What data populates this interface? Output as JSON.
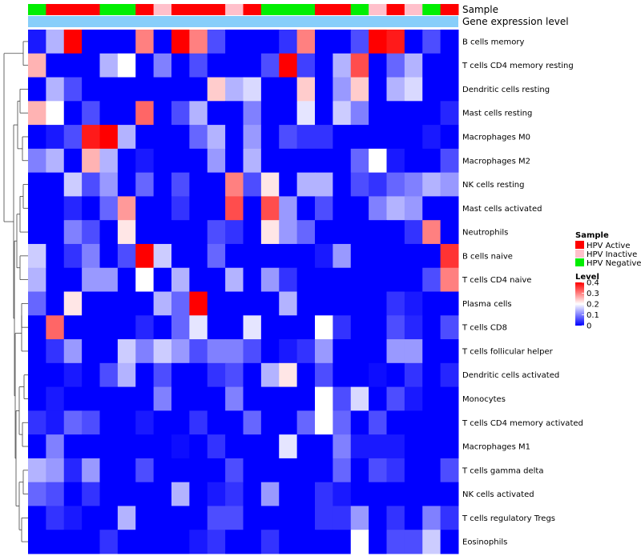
{
  "chart_data": {
    "type": "heatmap",
    "title": "",
    "annotation_tracks": [
      {
        "label": "Sample",
        "key": "sample"
      },
      {
        "label": "Gene expression level",
        "key": "gene_level"
      }
    ],
    "column_groups": [
      "HPV Negative",
      "HPV Active",
      "HPV Active",
      "HPV Active",
      "HPV Negative",
      "HPV Negative",
      "HPV Active",
      "HPV Inactive",
      "HPV Active",
      "HPV Active",
      "HPV Active",
      "HPV Inactive",
      "HPV Active",
      "HPV Negative",
      "HPV Negative",
      "HPV Negative",
      "HPV Active",
      "HPV Active",
      "HPV Negative",
      "HPV Inactive",
      "HPV Active",
      "HPV Inactive",
      "HPV Negative",
      "HPV Active"
    ],
    "rows": [
      {
        "label": "B cells memory",
        "values": [
          0.02,
          0.14,
          0.4,
          0.0,
          0.0,
          0.0,
          0.3,
          0.0,
          0.4,
          0.3,
          0.06,
          0.0,
          0.0,
          0.0,
          0.04,
          0.3,
          0.0,
          0.0,
          0.06,
          0.4,
          0.38,
          0.0,
          0.06,
          0.0
        ]
      },
      {
        "label": "T cells CD4 memory resting",
        "values": [
          0.26,
          0.0,
          0.0,
          0.0,
          0.14,
          0.2,
          0.0,
          0.1,
          0.0,
          0.06,
          0.0,
          0.0,
          0.0,
          0.06,
          0.4,
          0.05,
          0.0,
          0.14,
          0.34,
          0.0,
          0.08,
          0.14,
          0.0,
          0.0
        ]
      },
      {
        "label": "Dendritic cells resting",
        "values": [
          0.0,
          0.14,
          0.06,
          0.0,
          0.0,
          0.0,
          0.0,
          0.0,
          0.0,
          0.0,
          0.24,
          0.14,
          0.17,
          0.0,
          0.0,
          0.24,
          0.0,
          0.12,
          0.24,
          0.0,
          0.14,
          0.17,
          0.0,
          0.0
        ]
      },
      {
        "label": "Mast cells resting",
        "values": [
          0.26,
          0.2,
          0.0,
          0.06,
          0.0,
          0.0,
          0.32,
          0.0,
          0.06,
          0.14,
          0.0,
          0.0,
          0.1,
          0.0,
          0.0,
          0.18,
          0.0,
          0.16,
          0.1,
          0.0,
          0.0,
          0.0,
          0.0,
          0.03
        ]
      },
      {
        "label": "Macrophages M0",
        "values": [
          0.0,
          0.02,
          0.06,
          0.38,
          0.4,
          0.14,
          0.0,
          0.0,
          0.0,
          0.08,
          0.14,
          0.0,
          0.12,
          0.0,
          0.06,
          0.04,
          0.04,
          0.0,
          0.0,
          0.0,
          0.0,
          0.0,
          0.02,
          0.0
        ]
      },
      {
        "label": "Macrophages M2",
        "values": [
          0.1,
          0.14,
          0.0,
          0.26,
          0.14,
          0.0,
          0.02,
          0.0,
          0.0,
          0.0,
          0.12,
          0.0,
          0.14,
          0.0,
          0.0,
          0.0,
          0.0,
          0.0,
          0.08,
          0.2,
          0.02,
          0.0,
          0.0,
          0.06
        ]
      },
      {
        "label": "NK cells resting",
        "values": [
          0.0,
          0.0,
          0.16,
          0.06,
          0.12,
          0.0,
          0.08,
          0.0,
          0.06,
          0.0,
          0.0,
          0.3,
          0.06,
          0.22,
          0.0,
          0.14,
          0.14,
          0.0,
          0.06,
          0.04,
          0.08,
          0.1,
          0.14,
          0.12
        ]
      },
      {
        "label": "Mast cells activated",
        "values": [
          0.0,
          0.0,
          0.03,
          0.0,
          0.08,
          0.28,
          0.0,
          0.0,
          0.04,
          0.0,
          0.0,
          0.34,
          0.0,
          0.34,
          0.12,
          0.0,
          0.06,
          0.0,
          0.0,
          0.1,
          0.14,
          0.12,
          0.0,
          0.0
        ]
      },
      {
        "label": "Neutrophils",
        "values": [
          0.0,
          0.0,
          0.1,
          0.06,
          0.0,
          0.22,
          0.0,
          0.0,
          0.0,
          0.0,
          0.06,
          0.04,
          0.0,
          0.22,
          0.12,
          0.08,
          0.0,
          0.0,
          0.0,
          0.0,
          0.0,
          0.04,
          0.3,
          0.0
        ]
      },
      {
        "label": "B cells naive",
        "values": [
          0.16,
          0.0,
          0.04,
          0.1,
          0.0,
          0.06,
          0.4,
          0.16,
          0.0,
          0.0,
          0.08,
          0.0,
          0.0,
          0.0,
          0.0,
          0.0,
          0.02,
          0.12,
          0.0,
          0.0,
          0.0,
          0.0,
          0.0,
          0.36
        ]
      },
      {
        "label": "T cells CD4 naive",
        "values": [
          0.14,
          0.0,
          0.0,
          0.12,
          0.12,
          0.0,
          0.2,
          0.0,
          0.14,
          0.0,
          0.0,
          0.14,
          0.0,
          0.12,
          0.04,
          0.0,
          0.0,
          0.0,
          0.0,
          0.0,
          0.0,
          0.0,
          0.06,
          0.3
        ]
      },
      {
        "label": "Plasma cells",
        "values": [
          0.08,
          0.0,
          0.22,
          0.0,
          0.0,
          0.0,
          0.0,
          0.14,
          0.08,
          0.4,
          0.0,
          0.0,
          0.0,
          0.0,
          0.14,
          0.0,
          0.0,
          0.0,
          0.0,
          0.0,
          0.04,
          0.02,
          0.0,
          0.0
        ]
      },
      {
        "label": "T cells CD8",
        "values": [
          0.0,
          0.32,
          0.0,
          0.0,
          0.0,
          0.0,
          0.03,
          0.0,
          0.08,
          0.18,
          0.0,
          0.0,
          0.18,
          0.0,
          0.0,
          0.0,
          0.2,
          0.04,
          0.0,
          0.0,
          0.06,
          0.03,
          0.0,
          0.06
        ]
      },
      {
        "label": "T cells follicular helper",
        "values": [
          0.0,
          0.04,
          0.12,
          0.0,
          0.0,
          0.16,
          0.1,
          0.16,
          0.12,
          0.06,
          0.1,
          0.1,
          0.06,
          0.0,
          0.02,
          0.04,
          0.12,
          0.0,
          0.0,
          0.0,
          0.12,
          0.12,
          0.0,
          0.0
        ]
      },
      {
        "label": "Dendritic cells activated",
        "values": [
          0.0,
          0.0,
          0.02,
          0.0,
          0.06,
          0.14,
          0.0,
          0.06,
          0.0,
          0.0,
          0.04,
          0.06,
          0.0,
          0.14,
          0.22,
          0.0,
          0.06,
          0.0,
          0.0,
          0.01,
          0.0,
          0.04,
          0.0,
          0.03
        ]
      },
      {
        "label": "Monocytes",
        "values": [
          0.0,
          0.02,
          0.0,
          0.0,
          0.0,
          0.0,
          0.0,
          0.1,
          0.0,
          0.0,
          0.0,
          0.1,
          0.0,
          0.0,
          0.0,
          0.0,
          0.2,
          0.06,
          0.17,
          0.0,
          0.06,
          0.02,
          0.0,
          0.0
        ]
      },
      {
        "label": "T cells CD4 memory activated",
        "values": [
          0.04,
          0.02,
          0.08,
          0.06,
          0.0,
          0.0,
          0.02,
          0.0,
          0.0,
          0.04,
          0.0,
          0.0,
          0.08,
          0.0,
          0.0,
          0.08,
          0.2,
          0.08,
          0.0,
          0.06,
          0.0,
          0.0,
          0.0,
          0.0
        ]
      },
      {
        "label": "Macrophages M1",
        "values": [
          0.0,
          0.1,
          0.0,
          0.0,
          0.0,
          0.0,
          0.0,
          0.0,
          0.01,
          0.0,
          0.04,
          0.0,
          0.0,
          0.0,
          0.18,
          0.0,
          0.0,
          0.1,
          0.02,
          0.02,
          0.02,
          0.0,
          0.0,
          0.0
        ]
      },
      {
        "label": "T cells gamma delta",
        "values": [
          0.14,
          0.12,
          0.03,
          0.12,
          0.0,
          0.0,
          0.06,
          0.0,
          0.0,
          0.0,
          0.0,
          0.06,
          0.0,
          0.0,
          0.0,
          0.0,
          0.0,
          0.08,
          0.0,
          0.06,
          0.04,
          0.0,
          0.0,
          0.06
        ]
      },
      {
        "label": "NK cells activated",
        "values": [
          0.08,
          0.06,
          0.0,
          0.04,
          0.0,
          0.0,
          0.0,
          0.0,
          0.14,
          0.0,
          0.02,
          0.04,
          0.0,
          0.12,
          0.0,
          0.0,
          0.04,
          0.02,
          0.0,
          0.0,
          0.0,
          0.0,
          0.0,
          0.0
        ]
      },
      {
        "label": "T cells regulatory  Tregs",
        "values": [
          0.0,
          0.04,
          0.02,
          0.0,
          0.0,
          0.14,
          0.0,
          0.0,
          0.0,
          0.0,
          0.06,
          0.06,
          0.0,
          0.0,
          0.0,
          0.0,
          0.04,
          0.04,
          0.12,
          0.0,
          0.04,
          0.0,
          0.1,
          0.04
        ]
      },
      {
        "label": "Eosinophils",
        "values": [
          0.0,
          0.0,
          0.0,
          0.0,
          0.04,
          0.0,
          0.0,
          0.0,
          0.0,
          0.02,
          0.04,
          0.0,
          0.0,
          0.04,
          0.0,
          0.0,
          0.0,
          0.0,
          0.2,
          0.0,
          0.06,
          0.06,
          0.16,
          0.0
        ]
      }
    ],
    "legend_sample": {
      "title": "Sample",
      "entries": [
        {
          "label": "HPV Active",
          "color": "#FF0000"
        },
        {
          "label": "HPV Inactive",
          "color": "#FFC0CB"
        },
        {
          "label": "HPV Negative",
          "color": "#00EE00"
        }
      ]
    },
    "legend_level": {
      "title": "Level",
      "range": [
        0,
        0.4
      ],
      "ticks": [
        {
          "value": 0.4,
          "label": "0.4"
        },
        {
          "value": 0.3,
          "label": "0.3"
        },
        {
          "value": 0.2,
          "label": "0.2"
        },
        {
          "value": 0.1,
          "label": "0.1"
        },
        {
          "value": 0,
          "label": "0"
        }
      ]
    },
    "colors": {
      "low": "#0000FF",
      "mid": "#FFFFFF",
      "high": "#FF0000",
      "gene_track": "#87CEFA",
      "dendrogram": "#444444"
    }
  }
}
